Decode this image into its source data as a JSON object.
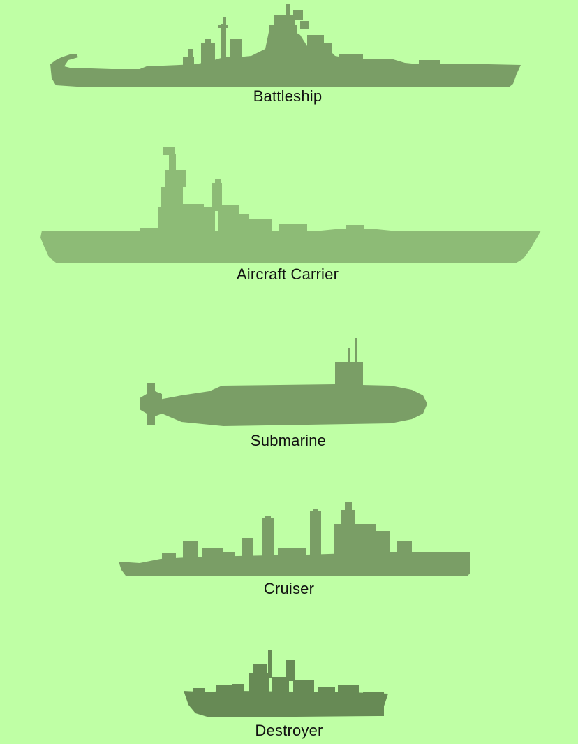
{
  "background_color": "#bfffa5",
  "ships": [
    {
      "id": "battleship",
      "label": "Battleship",
      "color": "#7a9e66"
    },
    {
      "id": "carrier",
      "label": "Aircraft Carrier",
      "color": "#8dbb76"
    },
    {
      "id": "submarine",
      "label": "Submarine",
      "color": "#7a9e66"
    },
    {
      "id": "cruiser",
      "label": "Cruiser",
      "color": "#7a9e66"
    },
    {
      "id": "destroyer",
      "label": "Destroyer",
      "color": "#678a55"
    }
  ]
}
